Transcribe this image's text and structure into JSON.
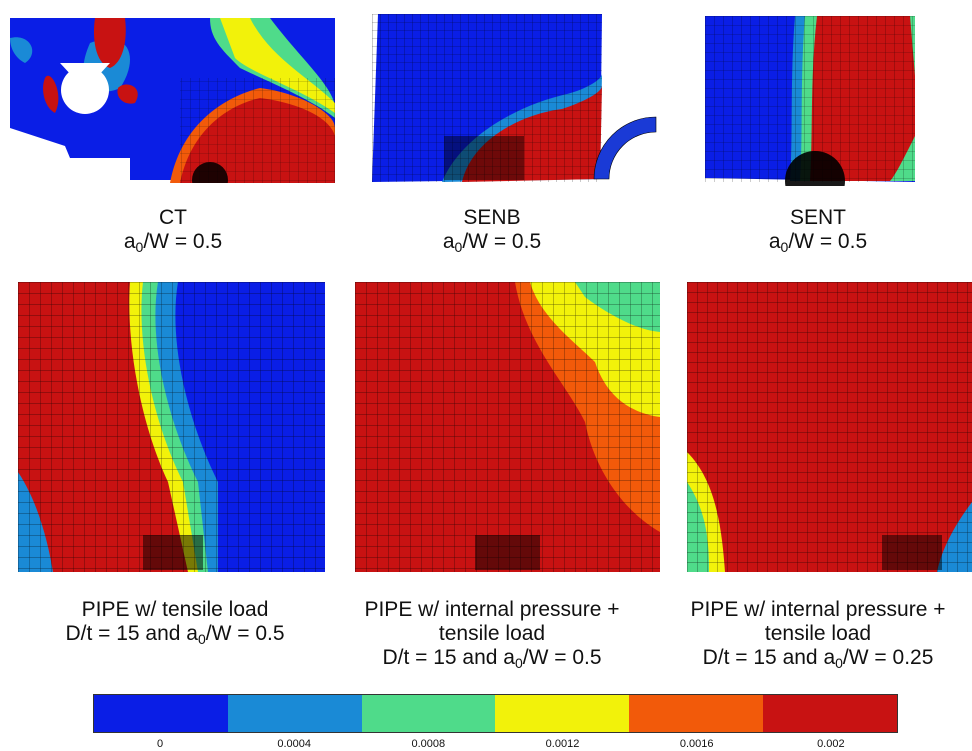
{
  "panels": [
    {
      "title": "CT",
      "ratio_prefix": "a",
      "ratio_sub": "0",
      "ratio_suffix": "/W = 0.5"
    },
    {
      "title": "SENB",
      "ratio_prefix": "a",
      "ratio_sub": "0",
      "ratio_suffix": "/W = 0.5"
    },
    {
      "title": "SENT",
      "ratio_prefix": "a",
      "ratio_sub": "0",
      "ratio_suffix": "/W = 0.5"
    },
    {
      "line1": "PIPE w/ tensile load",
      "ratio_prefix": "D/t = 15 and a",
      "ratio_sub": "0",
      "ratio_suffix": "/W = 0.5"
    },
    {
      "line1": "PIPE w/ internal pressure +",
      "line2": "tensile load",
      "ratio_prefix": "D/t = 15 and a",
      "ratio_sub": "0",
      "ratio_suffix": "/W = 0.5"
    },
    {
      "line1": "PIPE w/ internal pressure +",
      "line2": "tensile load",
      "ratio_prefix": "D/t = 15 and a",
      "ratio_sub": "0",
      "ratio_suffix": "/W = 0.25"
    }
  ],
  "colorbar": {
    "colors": [
      "#0a1ee6",
      "#1a8ad6",
      "#4fdb8a",
      "#f2f20a",
      "#f25a0a",
      "#c81212"
    ],
    "ticks": [
      "0",
      "0.0004",
      "0.0008",
      "0.0012",
      "0.0016",
      "0.002"
    ]
  }
}
